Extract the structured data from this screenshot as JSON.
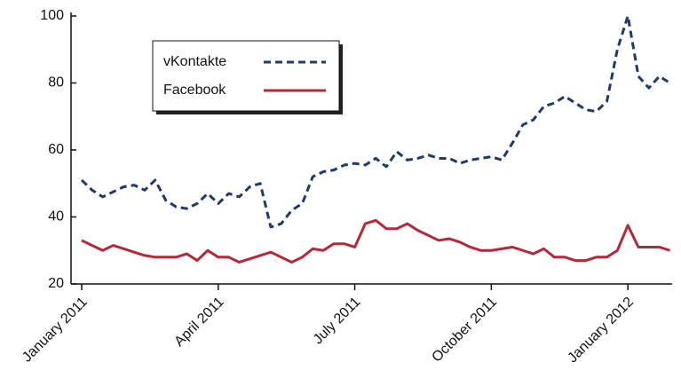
{
  "chart_data": {
    "type": "line",
    "categories": [
      "January 2011",
      null,
      null,
      null,
      null,
      null,
      null,
      null,
      null,
      null,
      null,
      null,
      null,
      "April 2011",
      null,
      null,
      null,
      null,
      null,
      null,
      null,
      null,
      null,
      null,
      null,
      null,
      "July 2011",
      null,
      null,
      null,
      null,
      null,
      null,
      null,
      null,
      null,
      null,
      null,
      null,
      "October 2011",
      null,
      null,
      null,
      null,
      null,
      null,
      null,
      null,
      null,
      null,
      null,
      null,
      "January 2012",
      null,
      null,
      null,
      null
    ],
    "series": [
      {
        "name": "vKontakte",
        "color": "#1f3a6b",
        "dash": true,
        "values": [
          51,
          48,
          46,
          47.5,
          49,
          49.5,
          48,
          51,
          45,
          43,
          42.5,
          44,
          47,
          44,
          47,
          46,
          49,
          50,
          37,
          38,
          42,
          44,
          52,
          53.5,
          54,
          55.5,
          56,
          55.5,
          57.5,
          55,
          59.5,
          57,
          57.5,
          58.5,
          57.5,
          57.5,
          56,
          57,
          57.5,
          58,
          57,
          62,
          67.5,
          69,
          73,
          74,
          76,
          74,
          72,
          71.5,
          74.5,
          90,
          100,
          82,
          78.5,
          82,
          80
        ]
      },
      {
        "name": "Facebook",
        "color": "#b5283a",
        "dash": false,
        "values": [
          33,
          31.5,
          30,
          31.5,
          30.5,
          29.5,
          28.5,
          28,
          28,
          28,
          29,
          27,
          30,
          28,
          28,
          26.5,
          27.5,
          28.5,
          29.5,
          28,
          26.5,
          28,
          30.5,
          30,
          32,
          32,
          31,
          38,
          39,
          36.5,
          36.5,
          38,
          36,
          34.5,
          33,
          33.5,
          32.5,
          31,
          30,
          30,
          30.5,
          31,
          30,
          29,
          30.5,
          28,
          28,
          27,
          27,
          28,
          28,
          30,
          37.5,
          31,
          31,
          31,
          30
        ]
      }
    ],
    "ylim": [
      20,
      100
    ],
    "yticks": [
      20,
      40,
      60,
      80,
      100
    ],
    "legend": "upper left"
  }
}
